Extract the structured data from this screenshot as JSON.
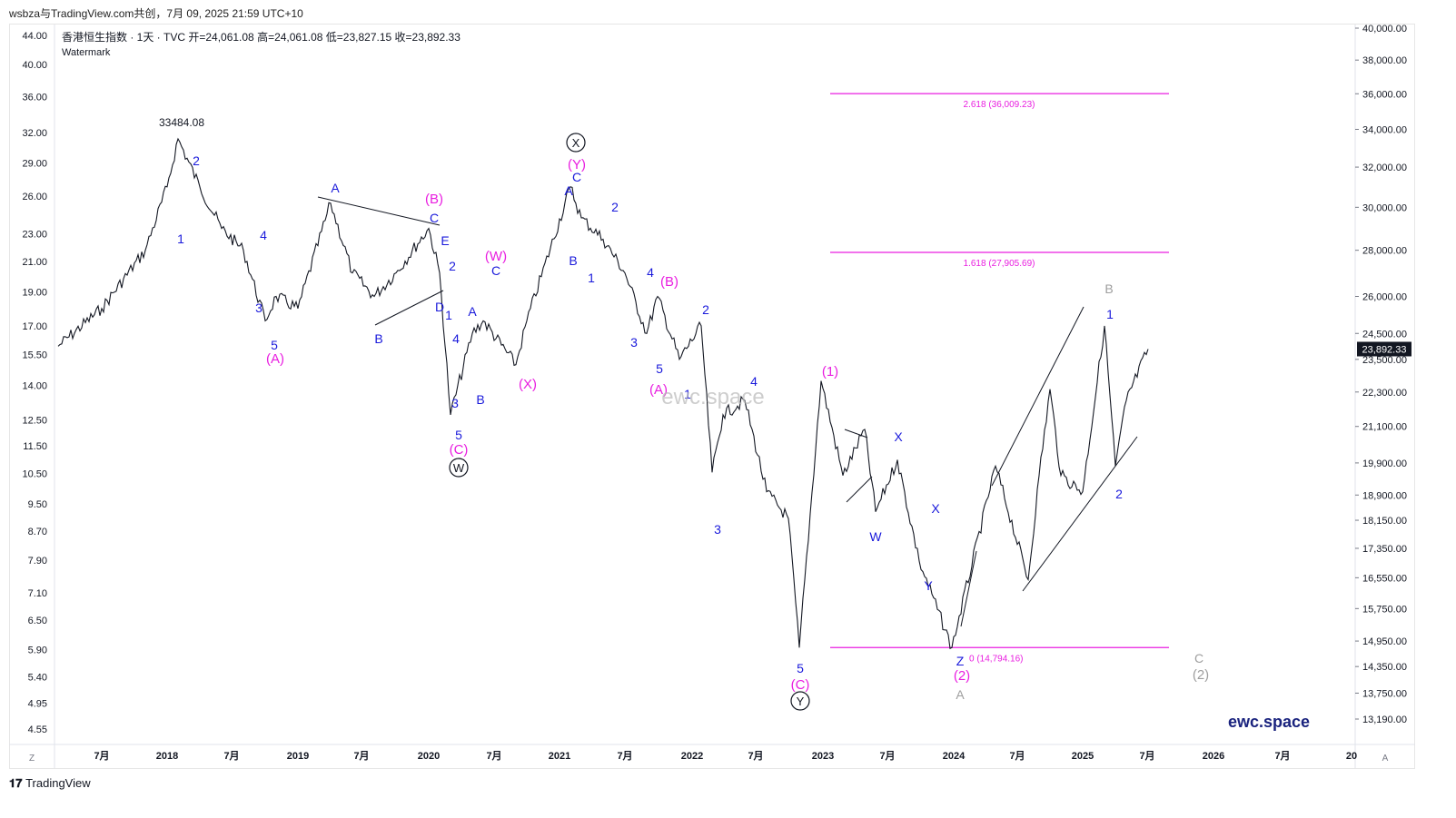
{
  "header": {
    "top_text": "wsbza与TradingView.com共创，7月 09, 2025 21:59 UTC+10",
    "symbol": "香港恒生指数 · 1天 · TVC",
    "ohlc": "开=24,061.08  高=24,061.08  低=23,827.15  收=23,892.33",
    "watermark_label": "Watermark"
  },
  "footer": {
    "brand": "TradingView",
    "z_btn": "Z",
    "a_btn": "A"
  },
  "watermarks": {
    "center": "ewc.space",
    "bottom_right": "ewc.space"
  },
  "colors": {
    "magenta": "#e91ee0",
    "blue": "#1a1adb",
    "grey": "#9e9e9e",
    "price": "#131722"
  },
  "chart_data": {
    "type": "line",
    "title": "香港恒生指数 · 1天 · TVC",
    "x_tick_labels": [
      "7月",
      "2018",
      "7月",
      "2019",
      "7月",
      "2020",
      "7月",
      "2021",
      "7月",
      "2022",
      "7月",
      "2023",
      "7月",
      "2024",
      "7月",
      "2025",
      "7月",
      "2026",
      "7月",
      "20"
    ],
    "right_axis_ticks": [
      "40,000.00",
      "38,000.00",
      "36,000.00",
      "34,000.00",
      "32,000.00",
      "30,000.00",
      "28,000.00",
      "26,000.00",
      "24,500.00",
      "23,500.00",
      "22,300.00",
      "21,100.00",
      "19,900.00",
      "18,900.00",
      "18,150.00",
      "17,350.00",
      "16,550.00",
      "15,750.00",
      "14,950.00",
      "14,350.00",
      "13,750.00",
      "13,190.00"
    ],
    "left_axis_ticks": [
      "44.00",
      "40.00",
      "36.00",
      "32.00",
      "29.00",
      "26.00",
      "23.00",
      "21.00",
      "19.00",
      "17.00",
      "15.50",
      "14.00",
      "12.50",
      "11.50",
      "10.50",
      "9.50",
      "8.70",
      "7.90",
      "7.10",
      "6.50",
      "5.90",
      "5.40",
      "4.95",
      "4.55"
    ],
    "last_price_label": "23,892.33",
    "series": [
      {
        "x": [
          "2017-03",
          "2017-07",
          "2017-11",
          "2018-01",
          "2018-02",
          "2018-04",
          "2018-06",
          "2018-08",
          "2018-10",
          "2018-11",
          "2019-01",
          "2019-04",
          "2019-06",
          "2019-08",
          "2019-10",
          "2020-01",
          "2020-02",
          "2020-03",
          "2020-05",
          "2020-06",
          "2020-09",
          "2020-10",
          "2021-02",
          "2021-03",
          "2021-05",
          "2021-07",
          "2021-09",
          "2021-10",
          "2021-12",
          "2022-02",
          "2022-03",
          "2022-04",
          "2022-06",
          "2022-08",
          "2022-10",
          "2022-11",
          "2023-01",
          "2023-03",
          "2023-05",
          "2023-06",
          "2023-08",
          "2023-10",
          "2024-01",
          "2024-05",
          "2024-08",
          "2024-09",
          "2024-10",
          "2024-11",
          "2025-01",
          "2025-03",
          "2025-04",
          "2025-05",
          "2025-07"
        ],
        "y": [
          24000,
          25500,
          28000,
          31000,
          33484,
          31000,
          29000,
          28000,
          25000,
          26000,
          25500,
          30200,
          27000,
          26000,
          27000,
          29000,
          27000,
          21500,
          24500,
          25000,
          23300,
          25000,
          31000,
          29500,
          28500,
          27000,
          24500,
          26000,
          23500,
          24800,
          19600,
          21500,
          22000,
          19000,
          18200,
          14794,
          22700,
          19500,
          21000,
          18400,
          20000,
          17000,
          14794,
          19800,
          16500,
          19500,
          22400,
          19500,
          19000,
          24800,
          19800,
          22000,
          23892
        ]
      }
    ],
    "horizontal_levels": [
      {
        "label": "2.618 (36,009.23)",
        "value": 36009.23
      },
      {
        "label": "1.618 (27,905.69)",
        "value": 27905.69
      },
      {
        "label": "0 (14,794.16)",
        "value": 14794.16
      }
    ],
    "price_annotation": "33484.08"
  },
  "wave_labels": [
    {
      "t": "2",
      "c": "blue",
      "x": 216,
      "y": 182
    },
    {
      "t": "1",
      "c": "blue",
      "x": 199,
      "y": 268
    },
    {
      "t": "4",
      "c": "blue",
      "x": 290,
      "y": 264
    },
    {
      "t": "3",
      "c": "blue",
      "x": 285,
      "y": 344
    },
    {
      "t": "5",
      "c": "blue",
      "x": 302,
      "y": 385
    },
    {
      "t": "(A)",
      "c": "magenta",
      "x": 303,
      "y": 400
    },
    {
      "t": "A",
      "c": "blue",
      "x": 369,
      "y": 212
    },
    {
      "t": "B",
      "c": "blue",
      "x": 417,
      "y": 378
    },
    {
      "t": "(B)",
      "c": "magenta",
      "x": 478,
      "y": 224
    },
    {
      "t": "C",
      "c": "blue",
      "x": 478,
      "y": 245
    },
    {
      "t": "E",
      "c": "blue",
      "x": 490,
      "y": 270
    },
    {
      "t": "2",
      "c": "blue",
      "x": 498,
      "y": 298
    },
    {
      "t": "D",
      "c": "blue",
      "x": 484,
      "y": 343
    },
    {
      "t": "1",
      "c": "blue",
      "x": 494,
      "y": 352
    },
    {
      "t": "4",
      "c": "blue",
      "x": 502,
      "y": 378
    },
    {
      "t": "3",
      "c": "blue",
      "x": 501,
      "y": 449
    },
    {
      "t": "5",
      "c": "blue",
      "x": 505,
      "y": 484
    },
    {
      "t": "(C)",
      "c": "magenta",
      "x": 505,
      "y": 500
    },
    {
      "t": "A",
      "c": "blue",
      "x": 520,
      "y": 348
    },
    {
      "t": "B",
      "c": "blue",
      "x": 529,
      "y": 445
    },
    {
      "t": "(W)",
      "c": "magenta",
      "x": 546,
      "y": 287
    },
    {
      "t": "C",
      "c": "blue",
      "x": 546,
      "y": 303
    },
    {
      "t": "(X)",
      "c": "magenta",
      "x": 581,
      "y": 428
    },
    {
      "t": "(Y)",
      "c": "magenta",
      "x": 635,
      "y": 186
    },
    {
      "t": "C",
      "c": "blue",
      "x": 635,
      "y": 200
    },
    {
      "t": "A",
      "c": "blue",
      "x": 626,
      "y": 215
    },
    {
      "t": "B",
      "c": "blue",
      "x": 631,
      "y": 292
    },
    {
      "t": "1",
      "c": "blue",
      "x": 651,
      "y": 311
    },
    {
      "t": "2",
      "c": "blue",
      "x": 677,
      "y": 233
    },
    {
      "t": "4",
      "c": "blue",
      "x": 716,
      "y": 305
    },
    {
      "t": "(B)",
      "c": "magenta",
      "x": 737,
      "y": 315
    },
    {
      "t": "3",
      "c": "blue",
      "x": 698,
      "y": 382
    },
    {
      "t": "5",
      "c": "blue",
      "x": 726,
      "y": 411
    },
    {
      "t": "(A)",
      "c": "magenta",
      "x": 725,
      "y": 434
    },
    {
      "t": "1",
      "c": "blue",
      "x": 757,
      "y": 439
    },
    {
      "t": "2",
      "c": "blue",
      "x": 777,
      "y": 346
    },
    {
      "t": "4",
      "c": "blue",
      "x": 830,
      "y": 425
    },
    {
      "t": "3",
      "c": "blue",
      "x": 790,
      "y": 588
    },
    {
      "t": "5",
      "c": "blue",
      "x": 881,
      "y": 741
    },
    {
      "t": "(C)",
      "c": "magenta",
      "x": 881,
      "y": 759
    },
    {
      "t": "(1)",
      "c": "magenta",
      "x": 914,
      "y": 414
    },
    {
      "t": "X",
      "c": "blue",
      "x": 989,
      "y": 486
    },
    {
      "t": "W",
      "c": "blue",
      "x": 964,
      "y": 596
    },
    {
      "t": "X",
      "c": "blue",
      "x": 1030,
      "y": 565
    },
    {
      "t": "Y",
      "c": "blue",
      "x": 1022,
      "y": 650
    },
    {
      "t": "Z",
      "c": "blue",
      "x": 1057,
      "y": 733
    },
    {
      "t": "(2)",
      "c": "magenta",
      "x": 1059,
      "y": 749
    },
    {
      "t": "A",
      "c": "grey",
      "x": 1057,
      "y": 770
    },
    {
      "t": "B",
      "c": "grey",
      "x": 1221,
      "y": 323
    },
    {
      "t": "1",
      "c": "blue",
      "x": 1222,
      "y": 351
    },
    {
      "t": "2",
      "c": "blue",
      "x": 1232,
      "y": 549
    },
    {
      "t": "C",
      "c": "grey",
      "x": 1320,
      "y": 730
    },
    {
      "t": "(2)",
      "c": "grey",
      "x": 1322,
      "y": 748
    }
  ],
  "circled_labels": [
    {
      "t": "X",
      "x": 634,
      "y": 158
    },
    {
      "t": "W",
      "x": 505,
      "y": 516
    },
    {
      "t": "Y",
      "x": 881,
      "y": 773
    }
  ]
}
